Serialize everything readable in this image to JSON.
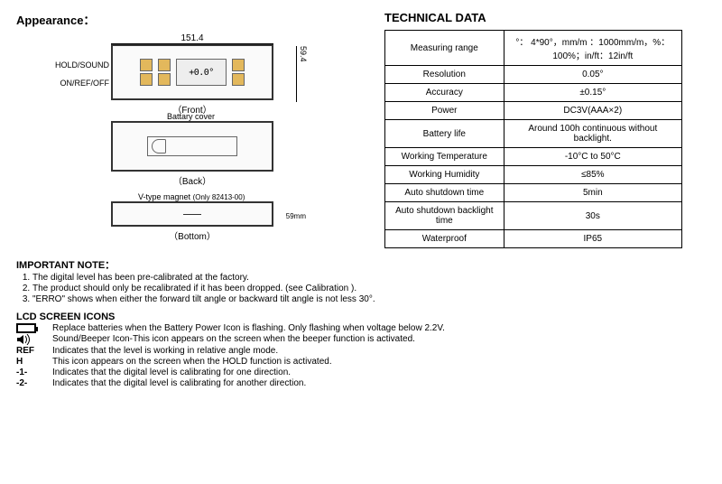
{
  "left": {
    "title": "Appearance：",
    "dim_width": "151.4",
    "lcd_label": "LCD",
    "mmft_label": "mm/m % in/ft",
    "light_label": "LIGHT",
    "hold_label": "HOLD/SOUND",
    "on_label": "ON/REF/OFF",
    "lcd_value": "+0.0°",
    "dim_height": "59.4",
    "front_caption": "（Front）",
    "back_cover": "Battary cover",
    "back_caption": "（Back）",
    "vtype": "V-type magnet",
    "vtype_sub": "(Only 82413-00)",
    "bottom_dim": "59mm",
    "bottom_caption": "（Bottom）"
  },
  "right": {
    "title": "TECHNICAL DATA",
    "rows": [
      {
        "k": "Measuring range",
        "v": "°： 4*90°，mm/m ：1000mm/m，%：100%；in/ft：12in/ft"
      },
      {
        "k": "Resolution",
        "v": "0.05°"
      },
      {
        "k": "Accuracy",
        "v": "±0.15°"
      },
      {
        "k": "Power",
        "v": "DC3V(AAA×2)"
      },
      {
        "k": "Battery life",
        "v": "Around 100h continuous without backlight."
      },
      {
        "k": "Working Temperature",
        "v": "-10°C to 50°C"
      },
      {
        "k": "Working Humidity",
        "v": "≤85%"
      },
      {
        "k": "Auto shutdown time",
        "v": "5min"
      },
      {
        "k": "Auto shutdown backlight time",
        "v": "30s"
      },
      {
        "k": "Waterproof",
        "v": "IP65"
      }
    ]
  },
  "notes": {
    "title": "IMPORTANT NOTE：",
    "items": [
      "The digital level has been pre-calibrated at the factory.",
      "The product should only be recalibrated if it has been dropped. (see Calibration ).",
      "\"ERRO\" shows when either the forward tilt angle or backward tilt angle is not less 30°."
    ]
  },
  "icons": {
    "title": "LCD SCREEN ICONS",
    "list": [
      {
        "sym": "batt",
        "text": "Replace batteries when the Battery Power Icon is flashing. Only flashing when voltage below 2.2V."
      },
      {
        "sym": "sound",
        "text": "Sound/Beeper Icon-This icon appears on the screen when the beeper function is activated."
      },
      {
        "sym": "REF",
        "text": "Indicates that the level is working in relative angle mode."
      },
      {
        "sym": "H",
        "text": "This icon appears on the screen when the HOLD function is activated."
      },
      {
        "sym": "-1-",
        "text": "Indicates that the digital level is calibrating for one direction."
      },
      {
        "sym": "-2-",
        "text": "Indicates that the digital level is calibrating for another direction."
      }
    ]
  }
}
